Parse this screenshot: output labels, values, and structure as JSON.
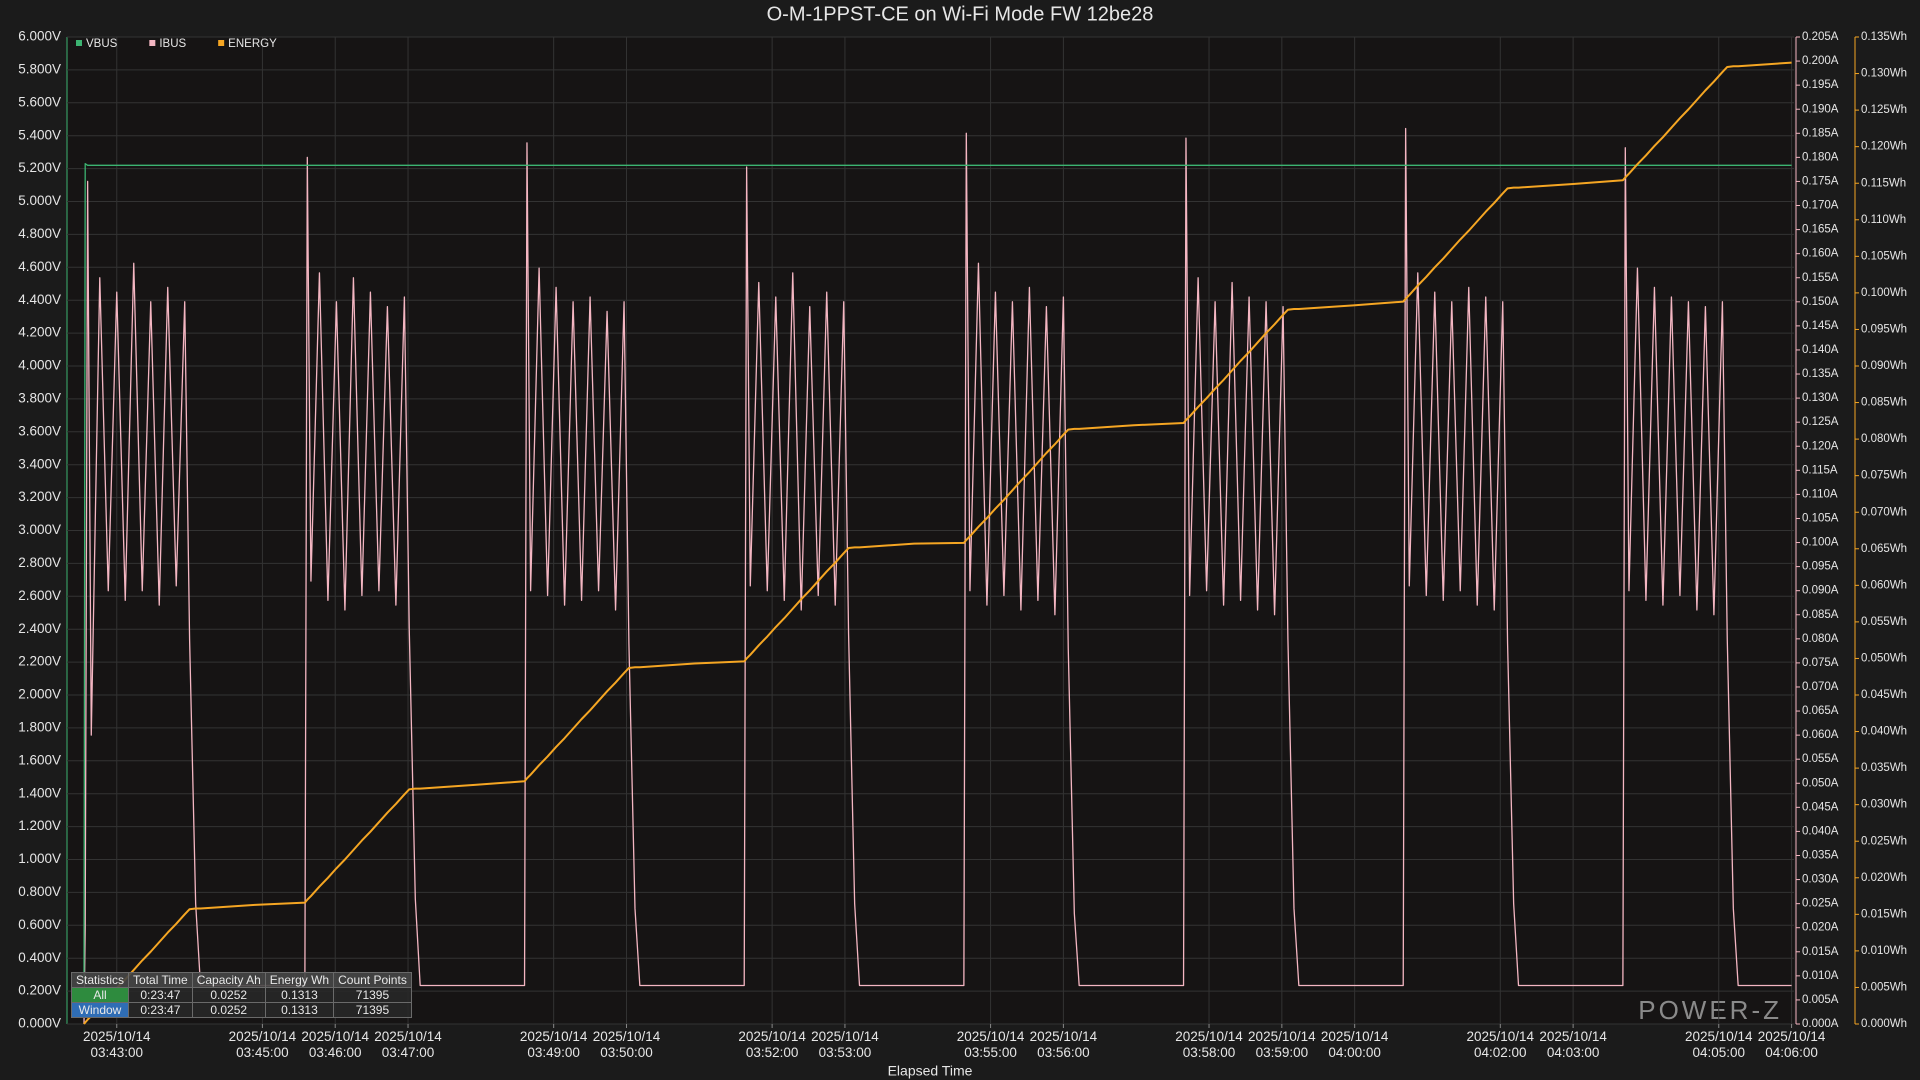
{
  "chart_data": {
    "type": "line",
    "title": "O-M-1PPST-CE on Wi-Fi Mode FW 12be28",
    "x_label": "Elapsed Time",
    "x": [
      "2025/10/14 03:42:33",
      "2025/10/14 03:42:34",
      "2025/10/14 03:42:36",
      "2025/10/14 03:42:39",
      "2025/10/14 03:42:46",
      "2025/10/14 03:42:53",
      "2025/10/14 03:43:00",
      "2025/10/14 03:43:07",
      "2025/10/14 03:43:14",
      "2025/10/14 03:43:21",
      "2025/10/14 03:43:28",
      "2025/10/14 03:43:35",
      "2025/10/14 03:43:42",
      "2025/10/14 03:43:49",
      "2025/10/14 03:43:56",
      "2025/10/14 03:44:00",
      "2025/10/14 03:44:05",
      "2025/10/14 03:44:09",
      "2025/10/14 03:44:54",
      "2025/10/14 03:45:35",
      "2025/10/14 03:45:37",
      "2025/10/14 03:45:40",
      "2025/10/14 03:45:47",
      "2025/10/14 03:45:54",
      "2025/10/14 03:46:01",
      "2025/10/14 03:46:08",
      "2025/10/14 03:46:15",
      "2025/10/14 03:46:22",
      "2025/10/14 03:46:29",
      "2025/10/14 03:46:36",
      "2025/10/14 03:46:43",
      "2025/10/14 03:46:50",
      "2025/10/14 03:46:57",
      "2025/10/14 03:47:01",
      "2025/10/14 03:47:06",
      "2025/10/14 03:47:10",
      "2025/10/14 03:47:55",
      "2025/10/14 03:48:36",
      "2025/10/14 03:48:38",
      "2025/10/14 03:48:41",
      "2025/10/14 03:48:48",
      "2025/10/14 03:48:55",
      "2025/10/14 03:49:02",
      "2025/10/14 03:49:09",
      "2025/10/14 03:49:16",
      "2025/10/14 03:49:23",
      "2025/10/14 03:49:30",
      "2025/10/14 03:49:37",
      "2025/10/14 03:49:44",
      "2025/10/14 03:49:51",
      "2025/10/14 03:49:58",
      "2025/10/14 03:50:02",
      "2025/10/14 03:50:07",
      "2025/10/14 03:50:11",
      "2025/10/14 03:50:56",
      "2025/10/14 03:51:37",
      "2025/10/14 03:51:39",
      "2025/10/14 03:51:42",
      "2025/10/14 03:51:49",
      "2025/10/14 03:51:56",
      "2025/10/14 03:52:03",
      "2025/10/14 03:52:10",
      "2025/10/14 03:52:17",
      "2025/10/14 03:52:24",
      "2025/10/14 03:52:31",
      "2025/10/14 03:52:38",
      "2025/10/14 03:52:45",
      "2025/10/14 03:52:52",
      "2025/10/14 03:52:59",
      "2025/10/14 03:53:03",
      "2025/10/14 03:53:08",
      "2025/10/14 03:53:12",
      "2025/10/14 03:53:57",
      "2025/10/14 03:54:38",
      "2025/10/14 03:54:40",
      "2025/10/14 03:54:43",
      "2025/10/14 03:54:50",
      "2025/10/14 03:54:57",
      "2025/10/14 03:55:04",
      "2025/10/14 03:55:11",
      "2025/10/14 03:55:18",
      "2025/10/14 03:55:25",
      "2025/10/14 03:55:32",
      "2025/10/14 03:55:39",
      "2025/10/14 03:55:46",
      "2025/10/14 03:55:53",
      "2025/10/14 03:56:00",
      "2025/10/14 03:56:04",
      "2025/10/14 03:56:09",
      "2025/10/14 03:56:13",
      "2025/10/14 03:56:58",
      "2025/10/14 03:57:39",
      "2025/10/14 03:57:41",
      "2025/10/14 03:57:44",
      "2025/10/14 03:57:51",
      "2025/10/14 03:57:58",
      "2025/10/14 03:58:05",
      "2025/10/14 03:58:12",
      "2025/10/14 03:58:19",
      "2025/10/14 03:58:26",
      "2025/10/14 03:58:33",
      "2025/10/14 03:58:40",
      "2025/10/14 03:58:47",
      "2025/10/14 03:58:54",
      "2025/10/14 03:59:01",
      "2025/10/14 03:59:05",
      "2025/10/14 03:59:10",
      "2025/10/14 03:59:14",
      "2025/10/14 03:59:59",
      "2025/10/14 04:00:40",
      "2025/10/14 04:00:42",
      "2025/10/14 04:00:45",
      "2025/10/14 04:00:52",
      "2025/10/14 04:00:59",
      "2025/10/14 04:01:06",
      "2025/10/14 04:01:13",
      "2025/10/14 04:01:20",
      "2025/10/14 04:01:27",
      "2025/10/14 04:01:34",
      "2025/10/14 04:01:41",
      "2025/10/14 04:01:48",
      "2025/10/14 04:01:55",
      "2025/10/14 04:02:02",
      "2025/10/14 04:02:06",
      "2025/10/14 04:02:11",
      "2025/10/14 04:02:15",
      "2025/10/14 04:03:00",
      "2025/10/14 04:03:41",
      "2025/10/14 04:03:43",
      "2025/10/14 04:03:46",
      "2025/10/14 04:03:53",
      "2025/10/14 04:04:00",
      "2025/10/14 04:04:07",
      "2025/10/14 04:04:14",
      "2025/10/14 04:04:21",
      "2025/10/14 04:04:28",
      "2025/10/14 04:04:35",
      "2025/10/14 04:04:42",
      "2025/10/14 04:04:49",
      "2025/10/14 04:04:56",
      "2025/10/14 04:05:03",
      "2025/10/14 04:05:07",
      "2025/10/14 04:05:12",
      "2025/10/14 04:05:16",
      "2025/10/14 04:06:00"
    ],
    "series": [
      {
        "name": "VBUS",
        "color": "#3cb371",
        "axis": "y",
        "values": [
          0.25,
          5.23,
          5.22,
          5.22,
          5.22,
          5.22,
          5.22,
          5.22,
          5.22,
          5.22,
          5.22,
          5.22,
          5.22,
          5.22,
          5.22,
          5.22,
          5.22,
          5.22,
          5.22,
          5.22,
          5.22,
          5.22,
          5.22,
          5.22,
          5.22,
          5.22,
          5.22,
          5.22,
          5.22,
          5.22,
          5.22,
          5.22,
          5.22,
          5.22,
          5.22,
          5.22,
          5.22,
          5.22,
          5.22,
          5.22,
          5.22,
          5.22,
          5.22,
          5.22,
          5.22,
          5.22,
          5.22,
          5.22,
          5.22,
          5.22,
          5.22,
          5.22,
          5.22,
          5.22,
          5.22,
          5.22,
          5.22,
          5.22,
          5.22,
          5.22,
          5.22,
          5.22,
          5.22,
          5.22,
          5.22,
          5.22,
          5.22,
          5.22,
          5.22,
          5.22,
          5.22,
          5.22,
          5.22,
          5.22,
          5.22,
          5.22,
          5.22,
          5.22,
          5.22,
          5.22,
          5.22,
          5.22,
          5.22,
          5.22,
          5.22,
          5.22,
          5.22,
          5.22,
          5.22,
          5.22,
          5.22,
          5.22,
          5.22,
          5.22,
          5.22,
          5.22,
          5.22,
          5.22,
          5.22,
          5.22,
          5.22,
          5.22,
          5.22,
          5.22,
          5.22,
          5.22,
          5.22,
          5.22,
          5.22,
          5.22,
          5.22,
          5.22,
          5.22,
          5.22,
          5.22,
          5.22,
          5.22,
          5.22,
          5.22,
          5.22,
          5.22,
          5.22,
          5.22,
          5.22,
          5.22,
          5.22,
          5.22,
          5.22,
          5.22,
          5.22,
          5.22,
          5.22,
          5.22,
          5.22,
          5.22,
          5.22,
          5.22,
          5.22,
          5.22,
          5.22,
          5.22,
          5.22,
          5.22,
          5.22,
          5.22
        ]
      },
      {
        "name": "IBUS",
        "color": "#f4b6c2",
        "axis": "y2",
        "values": [
          0,
          0.02,
          0.175,
          0.06,
          0.155,
          0.09,
          0.152,
          0.088,
          0.158,
          0.09,
          0.15,
          0.087,
          0.153,
          0.091,
          0.15,
          0.08,
          0.025,
          0.008,
          0.008,
          0.008,
          0.18,
          0.092,
          0.156,
          0.088,
          0.15,
          0.086,
          0.155,
          0.089,
          0.152,
          0.09,
          0.149,
          0.087,
          0.151,
          0.082,
          0.026,
          0.008,
          0.008,
          0.008,
          0.183,
          0.09,
          0.157,
          0.089,
          0.153,
          0.087,
          0.15,
          0.088,
          0.151,
          0.09,
          0.148,
          0.086,
          0.15,
          0.079,
          0.024,
          0.008,
          0.008,
          0.008,
          0.178,
          0.091,
          0.154,
          0.09,
          0.151,
          0.088,
          0.156,
          0.086,
          0.149,
          0.089,
          0.152,
          0.087,
          0.15,
          0.081,
          0.025,
          0.008,
          0.008,
          0.008,
          0.185,
          0.09,
          0.158,
          0.087,
          0.152,
          0.089,
          0.15,
          0.086,
          0.153,
          0.088,
          0.149,
          0.085,
          0.151,
          0.078,
          0.023,
          0.008,
          0.008,
          0.008,
          0.184,
          0.089,
          0.155,
          0.09,
          0.15,
          0.087,
          0.154,
          0.088,
          0.151,
          0.086,
          0.15,
          0.085,
          0.149,
          0.08,
          0.024,
          0.008,
          0.008,
          0.008,
          0.186,
          0.091,
          0.156,
          0.089,
          0.152,
          0.088,
          0.15,
          0.09,
          0.153,
          0.087,
          0.151,
          0.086,
          0.15,
          0.079,
          0.025,
          0.008,
          0.008,
          0.008,
          0.182,
          0.09,
          0.157,
          0.088,
          0.153,
          0.087,
          0.151,
          0.089,
          0.15,
          0.086,
          0.149,
          0.085,
          0.15,
          0.08,
          0.024,
          0.008,
          0.008
        ]
      },
      {
        "name": "ENERGY",
        "color": "#f5a623",
        "axis": "y3",
        "values": [
          0,
          0.0002,
          0.0006,
          0.0011,
          0.0024,
          0.0036,
          0.0049,
          0.0061,
          0.0074,
          0.0087,
          0.0099,
          0.0112,
          0.0125,
          0.0137,
          0.015,
          0.0157,
          0.0158,
          0.0158,
          0.0163,
          0.0166,
          0.017,
          0.0175,
          0.0188,
          0.02,
          0.0213,
          0.0225,
          0.0238,
          0.0251,
          0.0263,
          0.0276,
          0.0289,
          0.0301,
          0.0314,
          0.0321,
          0.0322,
          0.0322,
          0.0327,
          0.0332,
          0.0336,
          0.0341,
          0.0354,
          0.0366,
          0.0379,
          0.0391,
          0.0404,
          0.0417,
          0.0429,
          0.0442,
          0.0455,
          0.0467,
          0.048,
          0.0487,
          0.0488,
          0.0488,
          0.0493,
          0.0496,
          0.05,
          0.0505,
          0.0518,
          0.053,
          0.0543,
          0.0555,
          0.0568,
          0.0581,
          0.0593,
          0.0606,
          0.0619,
          0.0631,
          0.0644,
          0.0651,
          0.0652,
          0.0652,
          0.0657,
          0.0658,
          0.0662,
          0.0667,
          0.068,
          0.0692,
          0.0705,
          0.0717,
          0.073,
          0.0743,
          0.0755,
          0.0768,
          0.0781,
          0.0793,
          0.0806,
          0.0813,
          0.0814,
          0.0814,
          0.0819,
          0.0822,
          0.0826,
          0.0831,
          0.0844,
          0.0856,
          0.0869,
          0.0881,
          0.0894,
          0.0907,
          0.0919,
          0.0932,
          0.0945,
          0.0957,
          0.097,
          0.0977,
          0.0978,
          0.0978,
          0.0983,
          0.0988,
          0.0992,
          0.0997,
          0.101,
          0.1022,
          0.1035,
          0.1047,
          0.106,
          0.1073,
          0.1085,
          0.1098,
          0.1111,
          0.1123,
          0.1136,
          0.1143,
          0.1144,
          0.1144,
          0.1149,
          0.1154,
          0.1158,
          0.1163,
          0.1176,
          0.1188,
          0.1201,
          0.1213,
          0.1226,
          0.1239,
          0.1251,
          0.1264,
          0.1277,
          0.1289,
          0.1302,
          0.1309,
          0.131,
          0.131,
          0.1315
        ]
      }
    ],
    "xlim": [
      "2025/10/14 03:42:19",
      "2025/10/14 04:06:02"
    ],
    "xticks": [
      "2025/10/14 03:43:00",
      "2025/10/14 03:45:00",
      "2025/10/14 03:46:00",
      "2025/10/14 03:47:00",
      "2025/10/14 03:49:00",
      "2025/10/14 03:50:00",
      "2025/10/14 03:52:00",
      "2025/10/14 03:53:00",
      "2025/10/14 03:55:00",
      "2025/10/14 03:56:00",
      "2025/10/14 03:58:00",
      "2025/10/14 03:59:00",
      "2025/10/14 04:00:00",
      "2025/10/14 04:02:00",
      "2025/10/14 04:03:00",
      "2025/10/14 04:05:00",
      "2025/10/14 04:06:00"
    ],
    "ylim": [
      0,
      6
    ],
    "yticks": [
      {
        "value": 0,
        "label": "0.000V"
      },
      {
        "value": 0.2,
        "label": "0.200V"
      },
      {
        "value": 0.4,
        "label": "0.400V"
      },
      {
        "value": 0.6,
        "label": "0.600V"
      },
      {
        "value": 0.8,
        "label": "0.800V"
      },
      {
        "value": 1,
        "label": "1.000V"
      },
      {
        "value": 1.2,
        "label": "1.200V"
      },
      {
        "value": 1.4,
        "label": "1.400V"
      },
      {
        "value": 1.6,
        "label": "1.600V"
      },
      {
        "value": 1.8,
        "label": "1.800V"
      },
      {
        "value": 2,
        "label": "2.000V"
      },
      {
        "value": 2.2,
        "label": "2.200V"
      },
      {
        "value": 2.4,
        "label": "2.400V"
      },
      {
        "value": 2.6,
        "label": "2.600V"
      },
      {
        "value": 2.8,
        "label": "2.800V"
      },
      {
        "value": 3,
        "label": "3.000V"
      },
      {
        "value": 3.2,
        "label": "3.200V"
      },
      {
        "value": 3.4,
        "label": "3.400V"
      },
      {
        "value": 3.6,
        "label": "3.600V"
      },
      {
        "value": 3.8,
        "label": "3.800V"
      },
      {
        "value": 4,
        "label": "4.000V"
      },
      {
        "value": 4.2,
        "label": "4.200V"
      },
      {
        "value": 4.4,
        "label": "4.400V"
      },
      {
        "value": 4.6,
        "label": "4.600V"
      },
      {
        "value": 4.8,
        "label": "4.800V"
      },
      {
        "value": 5,
        "label": "5.000V"
      },
      {
        "value": 5.2,
        "label": "5.200V"
      },
      {
        "value": 5.4,
        "label": "5.400V"
      },
      {
        "value": 5.6,
        "label": "5.600V"
      },
      {
        "value": 5.8,
        "label": "5.800V"
      },
      {
        "value": 6,
        "label": "6.000V"
      }
    ],
    "y2lim": [
      0,
      0.205
    ],
    "y2ticks": [
      {
        "value": 0,
        "label": "0.000A"
      },
      {
        "value": 0.005,
        "label": "0.005A"
      },
      {
        "value": 0.01,
        "label": "0.010A"
      },
      {
        "value": 0.015,
        "label": "0.015A"
      },
      {
        "value": 0.02,
        "label": "0.020A"
      },
      {
        "value": 0.025,
        "label": "0.025A"
      },
      {
        "value": 0.03,
        "label": "0.030A"
      },
      {
        "value": 0.035,
        "label": "0.035A"
      },
      {
        "value": 0.04,
        "label": "0.040A"
      },
      {
        "value": 0.045,
        "label": "0.045A"
      },
      {
        "value": 0.05,
        "label": "0.050A"
      },
      {
        "value": 0.055,
        "label": "0.055A"
      },
      {
        "value": 0.06,
        "label": "0.060A"
      },
      {
        "value": 0.065,
        "label": "0.065A"
      },
      {
        "value": 0.07,
        "label": "0.070A"
      },
      {
        "value": 0.075,
        "label": "0.075A"
      },
      {
        "value": 0.08,
        "label": "0.080A"
      },
      {
        "value": 0.085,
        "label": "0.085A"
      },
      {
        "value": 0.09,
        "label": "0.090A"
      },
      {
        "value": 0.095,
        "label": "0.095A"
      },
      {
        "value": 0.1,
        "label": "0.100A"
      },
      {
        "value": 0.105,
        "label": "0.105A"
      },
      {
        "value": 0.11,
        "label": "0.110A"
      },
      {
        "value": 0.115,
        "label": "0.115A"
      },
      {
        "value": 0.12,
        "label": "0.120A"
      },
      {
        "value": 0.125,
        "label": "0.125A"
      },
      {
        "value": 0.13,
        "label": "0.130A"
      },
      {
        "value": 0.135,
        "label": "0.135A"
      },
      {
        "value": 0.14,
        "label": "0.140A"
      },
      {
        "value": 0.145,
        "label": "0.145A"
      },
      {
        "value": 0.15,
        "label": "0.150A"
      },
      {
        "value": 0.155,
        "label": "0.155A"
      },
      {
        "value": 0.16,
        "label": "0.160A"
      },
      {
        "value": 0.165,
        "label": "0.165A"
      },
      {
        "value": 0.17,
        "label": "0.170A"
      },
      {
        "value": 0.175,
        "label": "0.175A"
      },
      {
        "value": 0.18,
        "label": "0.180A"
      },
      {
        "value": 0.185,
        "label": "0.185A"
      },
      {
        "value": 0.19,
        "label": "0.190A"
      },
      {
        "value": 0.195,
        "label": "0.195A"
      },
      {
        "value": 0.2,
        "label": "0.200A"
      },
      {
        "value": 0.205,
        "label": "0.205A"
      }
    ],
    "y3lim": [
      0,
      0.135
    ],
    "y3ticks": [
      {
        "value": 0,
        "label": "0.000Wh"
      },
      {
        "value": 0.005,
        "label": "0.005Wh"
      },
      {
        "value": 0.01,
        "label": "0.010Wh"
      },
      {
        "value": 0.015,
        "label": "0.015Wh"
      },
      {
        "value": 0.02,
        "label": "0.020Wh"
      },
      {
        "value": 0.025,
        "label": "0.025Wh"
      },
      {
        "value": 0.03,
        "label": "0.030Wh"
      },
      {
        "value": 0.035,
        "label": "0.035Wh"
      },
      {
        "value": 0.04,
        "label": "0.040Wh"
      },
      {
        "value": 0.045,
        "label": "0.045Wh"
      },
      {
        "value": 0.05,
        "label": "0.050Wh"
      },
      {
        "value": 0.055,
        "label": "0.055Wh"
      },
      {
        "value": 0.06,
        "label": "0.060Wh"
      },
      {
        "value": 0.065,
        "label": "0.065Wh"
      },
      {
        "value": 0.07,
        "label": "0.070Wh"
      },
      {
        "value": 0.075,
        "label": "0.075Wh"
      },
      {
        "value": 0.08,
        "label": "0.080Wh"
      },
      {
        "value": 0.085,
        "label": "0.085Wh"
      },
      {
        "value": 0.09,
        "label": "0.090Wh"
      },
      {
        "value": 0.095,
        "label": "0.095Wh"
      },
      {
        "value": 0.1,
        "label": "0.100Wh"
      },
      {
        "value": 0.105,
        "label": "0.105Wh"
      },
      {
        "value": 0.11,
        "label": "0.110Wh"
      },
      {
        "value": 0.115,
        "label": "0.115Wh"
      },
      {
        "value": 0.12,
        "label": "0.120Wh"
      },
      {
        "value": 0.125,
        "label": "0.125Wh"
      },
      {
        "value": 0.13,
        "label": "0.130Wh"
      },
      {
        "value": 0.135,
        "label": "0.135Wh"
      }
    ],
    "grid": true,
    "legend": "top-left"
  },
  "statistics": {
    "header": [
      "Statistics",
      "Total Time",
      "Capacity Ah",
      "Energy Wh",
      "Count Points"
    ],
    "rows": [
      [
        "All",
        "0:23:47",
        "0.0252",
        "0.1313",
        "71395"
      ],
      [
        "Window",
        "0:23:47",
        "0.0252",
        "0.1313",
        "71395"
      ]
    ]
  },
  "watermark": "POWER-Z"
}
